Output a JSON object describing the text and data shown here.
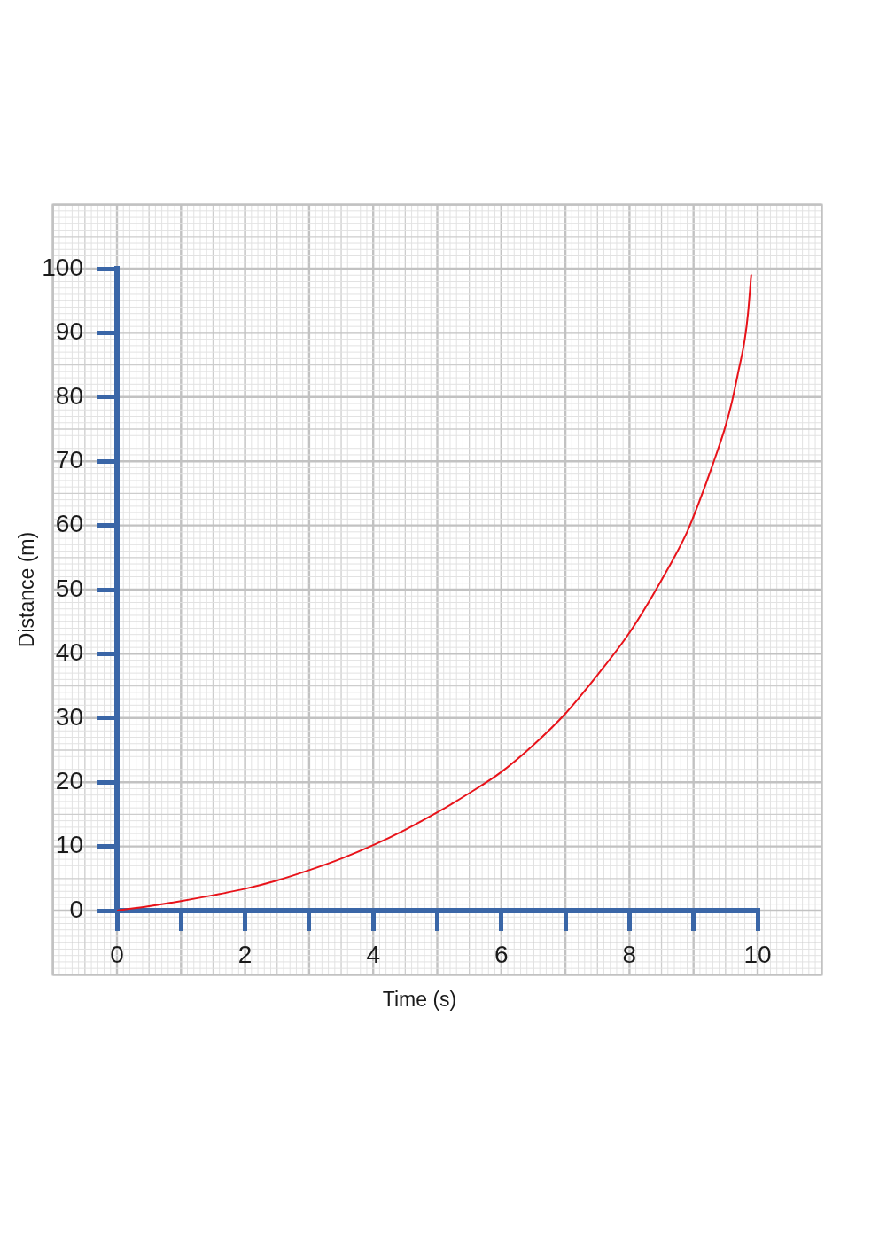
{
  "chart_data": {
    "type": "line",
    "xlabel": "Time (s)",
    "ylabel": "Distance (m)",
    "x": [
      0,
      0.5,
      1,
      1.5,
      2,
      2.5,
      3,
      3.5,
      4,
      4.5,
      5,
      5.5,
      6,
      6.5,
      7,
      7.5,
      8,
      8.5,
      8.9,
      9.1,
      9.3,
      9.5,
      9.6,
      9.7,
      9.8,
      9.85,
      9.9
    ],
    "values": [
      0,
      0.7,
      1.5,
      2.4,
      3.4,
      4.7,
      6.3,
      8.1,
      10.2,
      12.6,
      15.3,
      18.3,
      21.6,
      25.8,
      30.7,
      36.7,
      43.3,
      51.5,
      59,
      64,
      69.5,
      75.5,
      79.3,
      84,
      89,
      93,
      99
    ],
    "color": "#e8131a",
    "xlim": [
      0,
      10
    ],
    "ylim": [
      0,
      100
    ],
    "xticks": [
      0,
      {
        "value": 1,
        "label": null
      },
      2,
      {
        "value": 3,
        "label": null
      },
      4,
      {
        "value": 5,
        "label": null
      },
      6,
      {
        "value": 7,
        "label": null
      },
      8,
      {
        "value": 9,
        "label": null
      },
      10
    ],
    "yticks": [
      0,
      10,
      20,
      30,
      40,
      50,
      60,
      70,
      80,
      90,
      100
    ],
    "grid": true,
    "line_style": "solid"
  }
}
